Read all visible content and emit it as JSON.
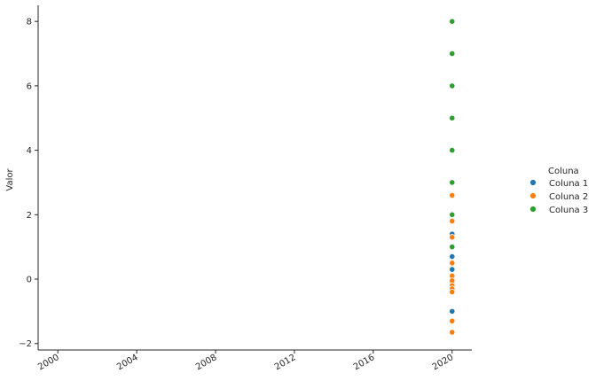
{
  "chart_data": {
    "type": "scatter",
    "xlabel": "",
    "ylabel": "Valor",
    "x_ticks": [
      "2000",
      "2004",
      "2008",
      "2012",
      "2016",
      "2020"
    ],
    "x_range": [
      1999.0,
      2021.0
    ],
    "y_ticks": [
      -2,
      0,
      2,
      4,
      6,
      8
    ],
    "y_range": [
      -2.2,
      8.5
    ],
    "grid": false,
    "legend": {
      "title": "Coluna",
      "placement": "right",
      "entries": [
        "Coluna 1",
        "Coluna 2",
        "Coluna 3"
      ]
    },
    "series": [
      {
        "name": "Coluna 1",
        "color": "#1f77b4",
        "x": [
          2020,
          2020,
          2020,
          2020,
          2020,
          2020,
          2020
        ],
        "y": [
          1.4,
          0.7,
          0.3,
          -0.15,
          -0.3,
          -0.35,
          -1.0
        ]
      },
      {
        "name": "Coluna 2",
        "color": "#ff7f0e",
        "x": [
          2020,
          2020,
          2020,
          2020,
          2020,
          2020,
          2020,
          2020,
          2020,
          2020,
          2020
        ],
        "y": [
          2.6,
          1.8,
          1.3,
          0.5,
          0.1,
          -0.05,
          -0.2,
          -0.3,
          -0.4,
          -1.3,
          -1.65
        ]
      },
      {
        "name": "Coluna 3",
        "color": "#2ca02c",
        "x": [
          2020,
          2020,
          2020,
          2020,
          2020,
          2020,
          2020,
          2020
        ],
        "y": [
          8,
          7,
          6,
          5,
          4,
          3,
          2,
          1
        ]
      }
    ]
  }
}
